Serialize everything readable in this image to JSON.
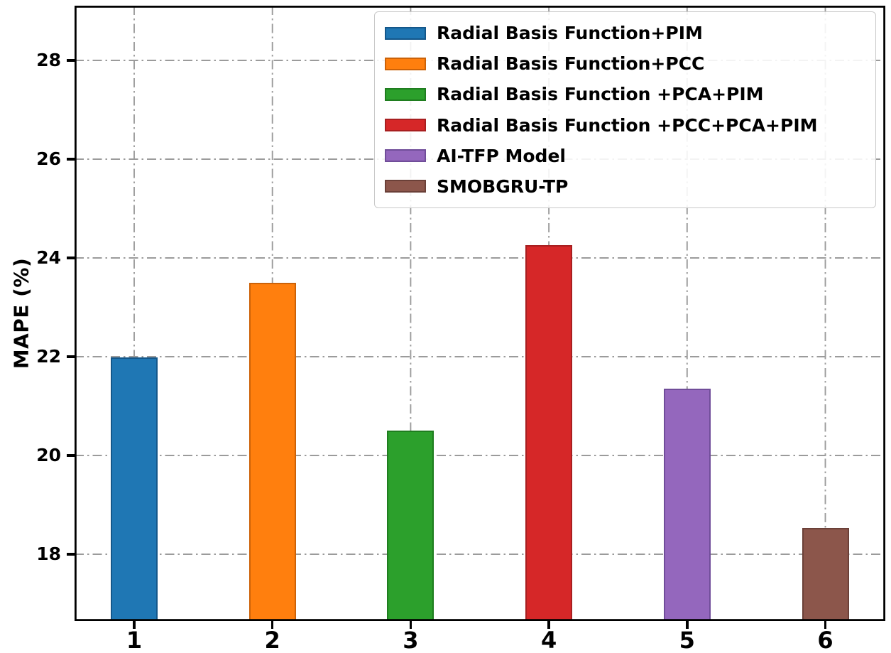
{
  "chart_data": {
    "type": "bar",
    "title": "",
    "xlabel": "",
    "ylabel": "MAPE (%)",
    "categories": [
      "1",
      "2",
      "3",
      "4",
      "5",
      "6"
    ],
    "values": [
      21.98,
      23.5,
      20.5,
      24.26,
      21.35,
      18.53
    ],
    "series": [
      {
        "name": "Radial Basis Function+PIM",
        "value": 21.98,
        "color": "#1f77b4"
      },
      {
        "name": "Radial Basis Function+PCC",
        "value": 23.5,
        "color": "#ff7f0e"
      },
      {
        "name": "Radial Basis Function +PCA+PIM",
        "value": 20.5,
        "color": "#2ca02c"
      },
      {
        "name": "Radial Basis Function +PCC+PCA+PIM",
        "value": 24.26,
        "color": "#d62728"
      },
      {
        "name": "AI-TFP Model",
        "value": 21.35,
        "color": "#9467bd"
      },
      {
        "name": "SMOBGRU-TP",
        "value": 18.53,
        "color": "#8c564b"
      }
    ],
    "bar_colors": [
      "#1f77b4",
      "#ff7f0e",
      "#2ca02c",
      "#d62728",
      "#9467bd",
      "#8c564b"
    ],
    "bar_edge_colors": [
      "#14578a",
      "#cc6208",
      "#1f7d1f",
      "#a81f20",
      "#704d99",
      "#6b4038"
    ],
    "yticks": [
      18,
      20,
      22,
      24,
      26,
      28
    ],
    "ylim": [
      16.66,
      29.11
    ],
    "grid": {
      "style": "dash-dot",
      "color": "#9b9b9b",
      "horizontal": true,
      "vertical": true
    },
    "legend_position": "upper right"
  },
  "axes": {
    "ylabel": "MAPE (%)",
    "ytick_labels": [
      "18",
      "20",
      "22",
      "24",
      "26",
      "28"
    ],
    "xtick_labels": [
      "1",
      "2",
      "3",
      "4",
      "5",
      "6"
    ]
  },
  "legend": {
    "items": [
      {
        "label": "Radial Basis Function+PIM",
        "color": "#1f77b4",
        "edge": "#14578a"
      },
      {
        "label": "Radial Basis Function+PCC",
        "color": "#ff7f0e",
        "edge": "#cc6208"
      },
      {
        "label": "Radial Basis Function +PCA+PIM",
        "color": "#2ca02c",
        "edge": "#1f7d1f"
      },
      {
        "label": "Radial Basis Function +PCC+PCA+PIM",
        "color": "#d62728",
        "edge": "#a81f20"
      },
      {
        "label": "AI-TFP Model",
        "color": "#9467bd",
        "edge": "#704d99"
      },
      {
        "label": "SMOBGRU-TP",
        "color": "#8c564b",
        "edge": "#6b4038"
      }
    ]
  }
}
